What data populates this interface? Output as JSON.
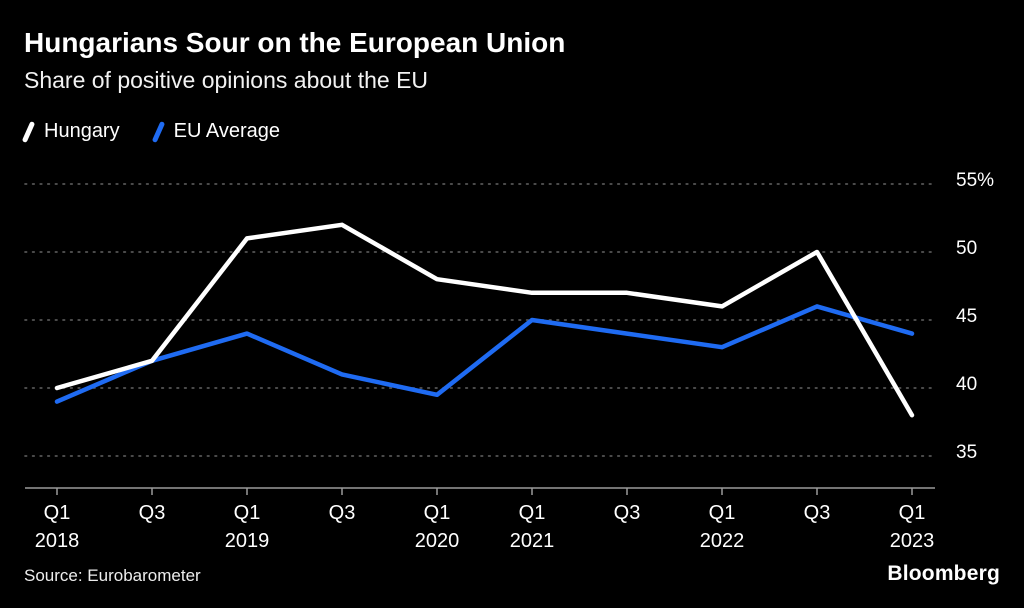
{
  "header": {
    "title": "Hungarians Sour on the European Union",
    "subtitle": "Share of positive opinions about the EU"
  },
  "legend": {
    "items": [
      {
        "label": "Hungary",
        "color": "#ffffff"
      },
      {
        "label": "EU Average",
        "color": "#1f6bf2"
      }
    ]
  },
  "footer": {
    "source": "Source: Eurobarometer",
    "brand": "Bloomberg"
  },
  "chart_data": {
    "type": "line",
    "title": "Hungarians Sour on the European Union",
    "subtitle": "Share of positive opinions about the EU",
    "x_ticks": [
      {
        "label": "Q1",
        "year": "2018"
      },
      {
        "label": "Q3"
      },
      {
        "label": "Q1",
        "year": "2019"
      },
      {
        "label": "Q3"
      },
      {
        "label": "Q1",
        "year": "2020"
      },
      {
        "label": "Q1",
        "year": "2021"
      },
      {
        "label": "Q3"
      },
      {
        "label": "Q1",
        "year": "2022"
      },
      {
        "label": "Q3"
      },
      {
        "label": "Q1",
        "year": "2023"
      }
    ],
    "series": [
      {
        "name": "Hungary",
        "color": "#ffffff",
        "values": [
          40,
          42,
          51,
          52,
          48,
          47,
          47,
          46,
          50,
          38
        ]
      },
      {
        "name": "EU Average",
        "color": "#1f6bf2",
        "values": [
          39,
          42,
          44,
          41,
          39.5,
          45,
          44,
          43,
          46,
          44
        ]
      }
    ],
    "yticks": [
      55,
      50,
      45,
      40,
      35
    ],
    "ytick_labels": [
      "55%",
      "50",
      "45",
      "40",
      "35"
    ],
    "ylim": [
      35,
      55
    ],
    "unit": "%",
    "grid": "horizontal-dotted",
    "legend_position": "top-left",
    "colors": {
      "grid": "#565656",
      "axis": "#9a9a9a",
      "tick_text": "#ffffff",
      "background": "#000000"
    }
  }
}
